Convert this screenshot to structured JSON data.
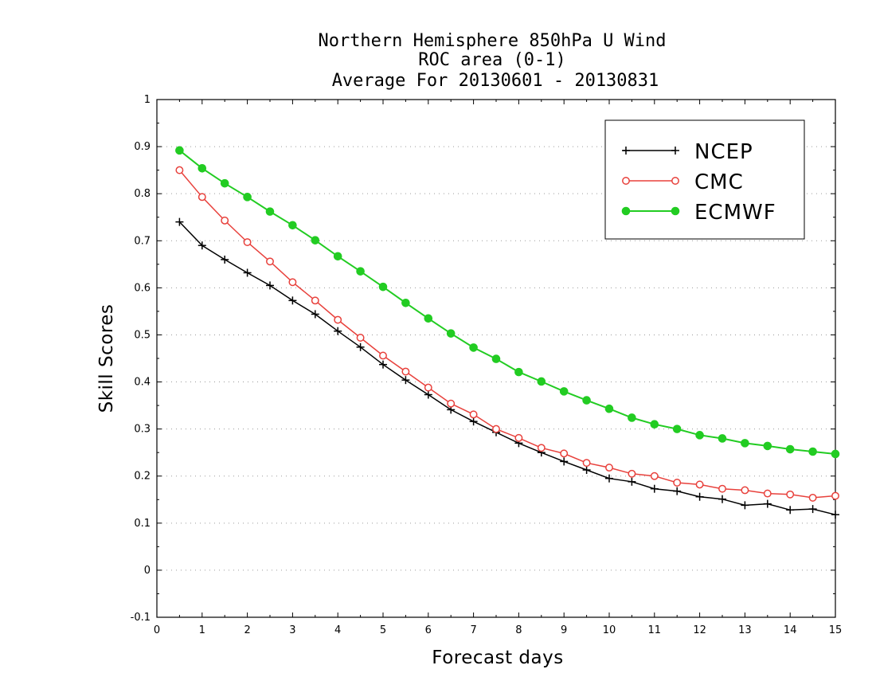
{
  "chart_data": {
    "type": "line",
    "title_lines": [
      "Northern Hemisphere 850hPa U Wind",
      "ROC area (0-1)",
      "Average For 20130601 - 20130831"
    ],
    "xlabel": "Forecast days",
    "ylabel": "Skill Scores",
    "xlim": [
      0,
      15
    ],
    "ylim": [
      -0.1,
      1
    ],
    "x_ticks": [
      0,
      1,
      2,
      3,
      4,
      5,
      6,
      7,
      8,
      9,
      10,
      11,
      12,
      13,
      14,
      15
    ],
    "y_ticks": [
      -0.1,
      0,
      0.1,
      0.2,
      0.3,
      0.4,
      0.5,
      0.6,
      0.7,
      0.8,
      0.9,
      1
    ],
    "y_tick_labels": [
      "-0.1",
      "0",
      "0.1",
      "0.2",
      "0.3",
      "0.4",
      "0.5",
      "0.6",
      "0.7",
      "0.8",
      "0.9",
      "1"
    ],
    "grid": "horizontal dotted",
    "legend_position": "top-right",
    "x": [
      0.5,
      1,
      1.5,
      2,
      2.5,
      3,
      3.5,
      4,
      4.5,
      5,
      5.5,
      6,
      6.5,
      7,
      7.5,
      8,
      8.5,
      9,
      9.5,
      10,
      10.5,
      11,
      11.5,
      12,
      12.5,
      13,
      13.5,
      14,
      14.5,
      15
    ],
    "series": [
      {
        "name": "NCEP",
        "color": "#000000",
        "marker": "plus",
        "values": [
          0.74,
          0.69,
          0.66,
          0.632,
          0.605,
          0.573,
          0.544,
          0.508,
          0.474,
          0.437,
          0.404,
          0.373,
          0.341,
          0.316,
          0.293,
          0.27,
          0.25,
          0.231,
          0.213,
          0.195,
          0.188,
          0.173,
          0.168,
          0.156,
          0.151,
          0.138,
          0.141,
          0.128,
          0.13,
          0.118
        ]
      },
      {
        "name": "CMC",
        "color": "#e8413c",
        "marker": "open-circle",
        "values": [
          0.85,
          0.793,
          0.743,
          0.697,
          0.656,
          0.612,
          0.573,
          0.532,
          0.494,
          0.456,
          0.422,
          0.388,
          0.354,
          0.331,
          0.3,
          0.281,
          0.26,
          0.248,
          0.228,
          0.218,
          0.205,
          0.2,
          0.186,
          0.182,
          0.173,
          0.17,
          0.163,
          0.161,
          0.154,
          0.158
        ]
      },
      {
        "name": "ECMWF",
        "color": "#22cc22",
        "marker": "filled-circle",
        "values": [
          0.892,
          0.854,
          0.822,
          0.793,
          0.762,
          0.733,
          0.701,
          0.667,
          0.635,
          0.602,
          0.568,
          0.535,
          0.503,
          0.473,
          0.449,
          0.421,
          0.401,
          0.38,
          0.361,
          0.343,
          0.324,
          0.31,
          0.3,
          0.287,
          0.28,
          0.27,
          0.264,
          0.257,
          0.252,
          0.247
        ]
      }
    ]
  }
}
